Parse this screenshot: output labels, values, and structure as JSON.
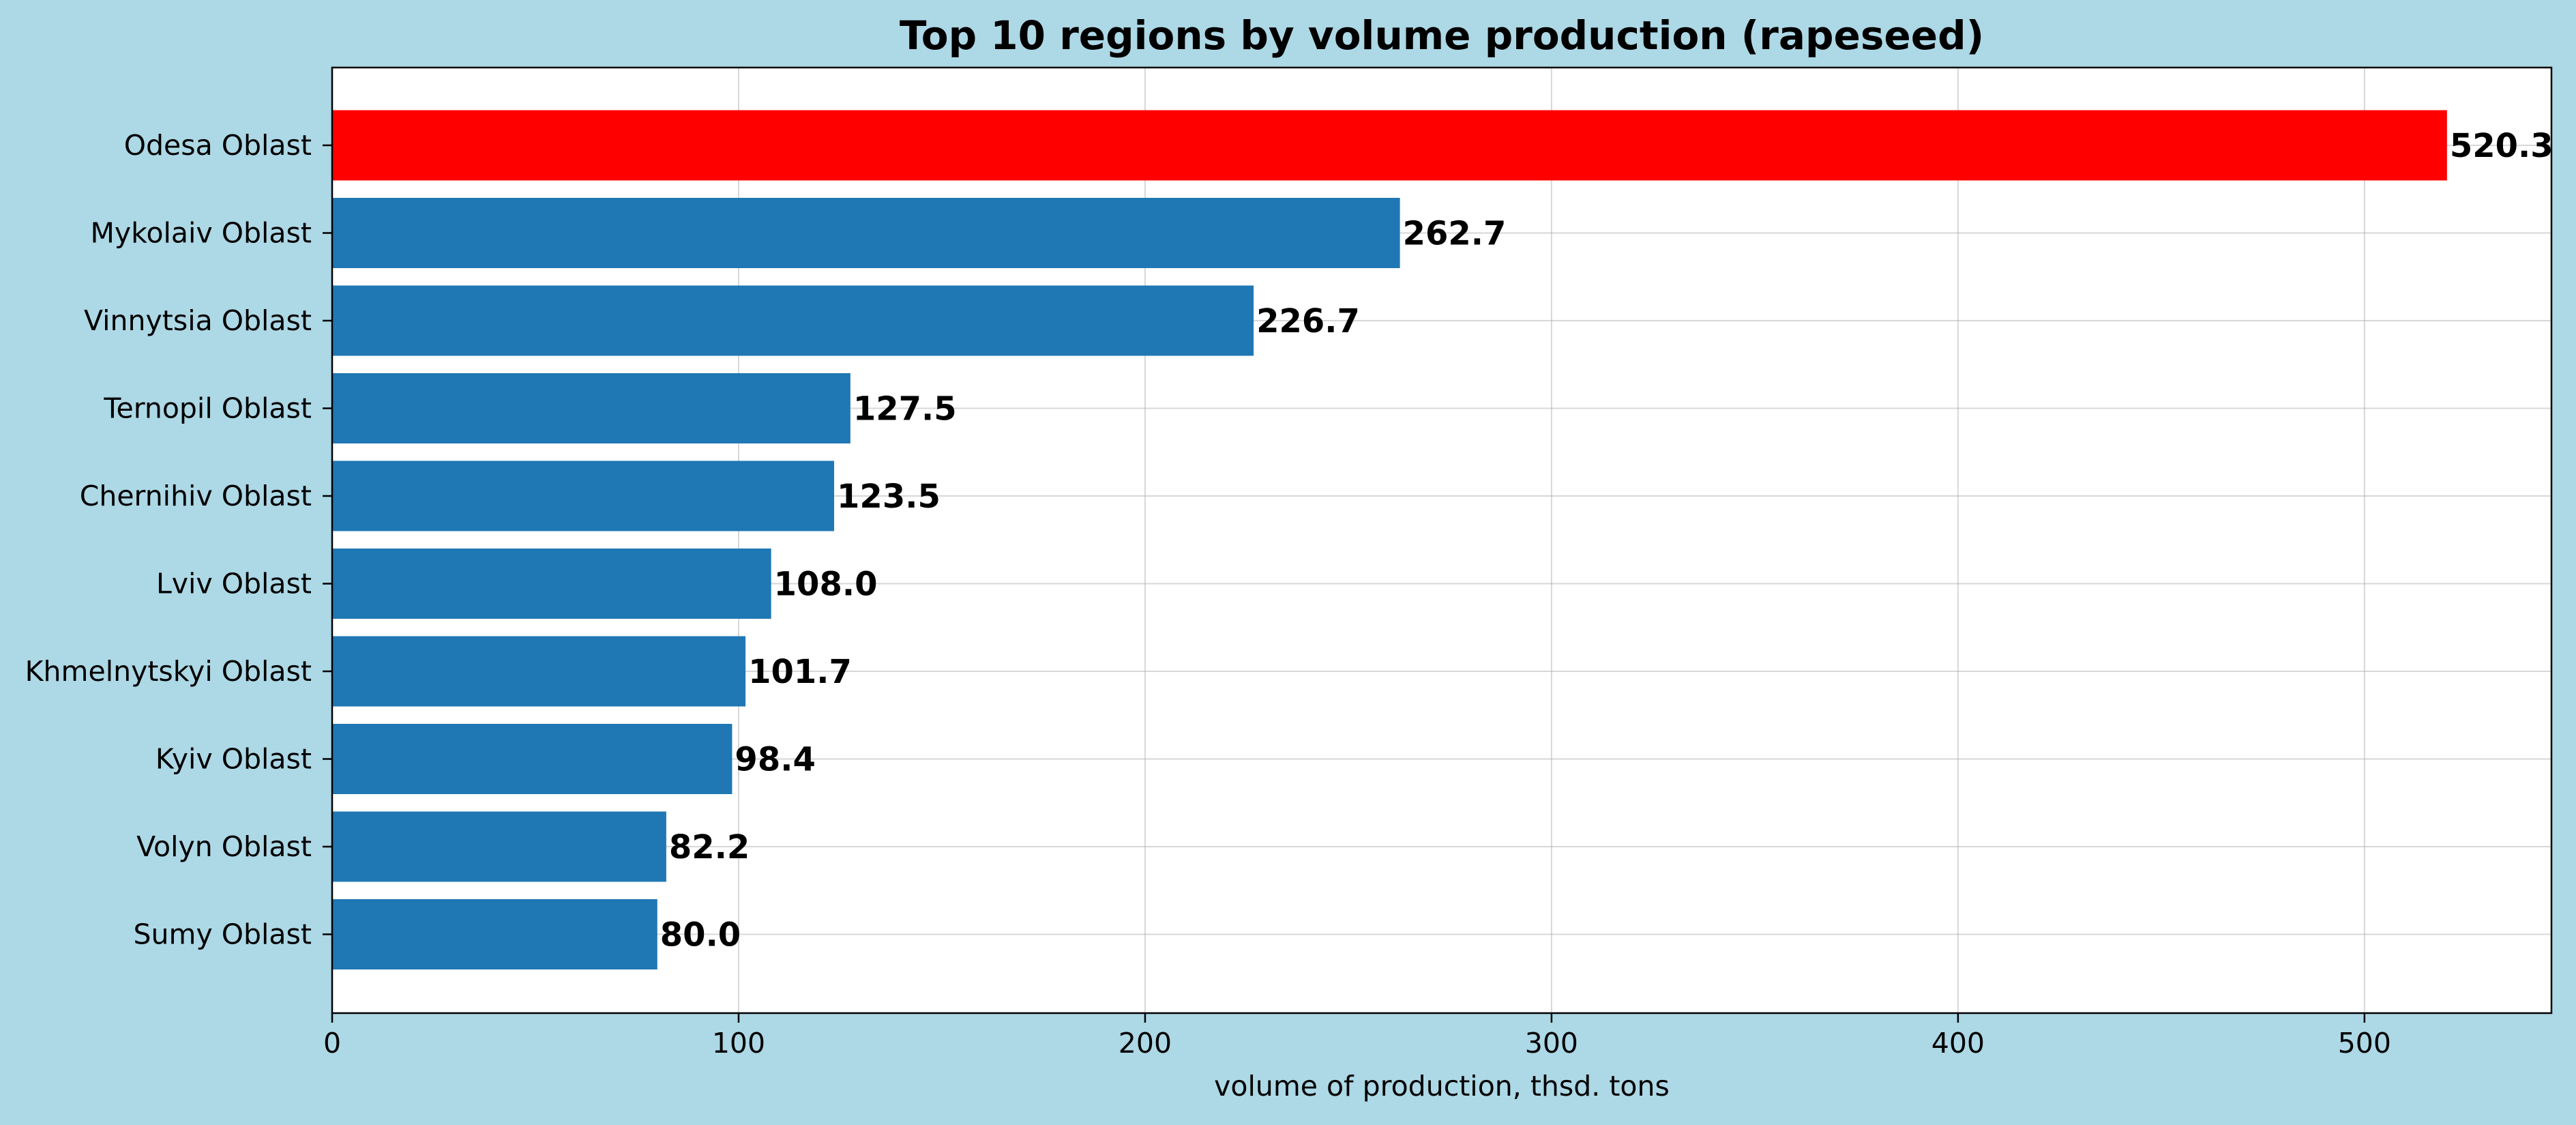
{
  "chart_data": {
    "type": "bar",
    "orientation": "horizontal",
    "title": "Top 10 regions by volume production (rapeseed)",
    "xlabel": "volume of production, thsd. tons",
    "ylabel": "",
    "categories": [
      "Odesa Oblast",
      "Mykolaiv Oblast",
      "Vinnytsia Oblast",
      "Ternopil Oblast",
      "Chernihiv Oblast",
      "Lviv Oblast",
      "Khmelnytskyi Oblast",
      "Kyiv Oblast",
      "Volyn Oblast",
      "Sumy Oblast"
    ],
    "values": [
      520.3,
      262.7,
      226.7,
      127.5,
      123.5,
      108.0,
      101.7,
      98.4,
      82.2,
      80.0
    ],
    "data_labels": [
      "520.3",
      "262.7",
      "226.7",
      "127.5",
      "123.5",
      "108.0",
      "101.7",
      "98.4",
      "82.2",
      "80.0"
    ],
    "xlim": [
      0,
      546
    ],
    "xticks": [
      0,
      100,
      200,
      300,
      400,
      500
    ],
    "xtick_labels": [
      "0",
      "100",
      "200",
      "300",
      "400",
      "500"
    ],
    "grid": true,
    "colors": {
      "highlight": "#ff0000",
      "bar": "#1f77b4",
      "figure_background": "#add8e6",
      "plot_background": "#ffffff"
    }
  }
}
